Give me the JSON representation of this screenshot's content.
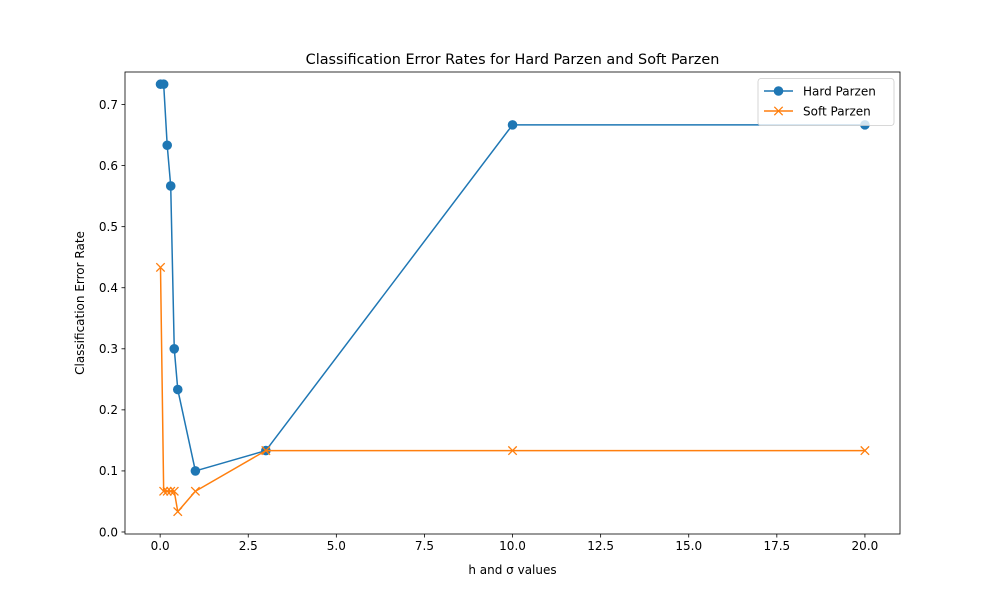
{
  "chart_data": {
    "type": "line",
    "title": "Classification Error Rates for Hard Parzen and Soft Parzen",
    "xlabel": "h and σ values",
    "ylabel": "Classification Error Rate",
    "xlim": [
      -0.9975,
      20.9955
    ],
    "ylim": [
      -0.0033,
      0.7533
    ],
    "xticks": [
      0.0,
      2.5,
      5.0,
      7.5,
      10.0,
      12.5,
      15.0,
      17.5,
      20.0
    ],
    "xtick_labels": [
      "0.0",
      "2.5",
      "5.0",
      "7.5",
      "10.0",
      "12.5",
      "15.0",
      "17.5",
      "20.0"
    ],
    "yticks": [
      0.0,
      0.1,
      0.2,
      0.3,
      0.4,
      0.5,
      0.6,
      0.7
    ],
    "ytick_labels": [
      "0.0",
      "0.1",
      "0.2",
      "0.3",
      "0.4",
      "0.5",
      "0.6",
      "0.7"
    ],
    "grid": false,
    "legend_position": "top-right",
    "series": [
      {
        "name": "Hard Parzen",
        "color": "#1f77b4",
        "marker": "circle",
        "x": [
          0.01,
          0.1,
          0.2,
          0.3,
          0.4,
          0.5,
          1.0,
          3.0,
          10.0,
          20.0
        ],
        "y": [
          0.7333,
          0.7333,
          0.6333,
          0.5667,
          0.3,
          0.2333,
          0.1,
          0.1333,
          0.6667,
          0.6667
        ]
      },
      {
        "name": "Soft Parzen",
        "color": "#ff7f0e",
        "marker": "x",
        "x": [
          0.01,
          0.1,
          0.2,
          0.3,
          0.4,
          0.5,
          1.0,
          3.0,
          10.0,
          20.0
        ],
        "y": [
          0.4333,
          0.0667,
          0.0667,
          0.0667,
          0.0667,
          0.0333,
          0.0667,
          0.1333,
          0.1333,
          0.1333
        ]
      }
    ]
  }
}
